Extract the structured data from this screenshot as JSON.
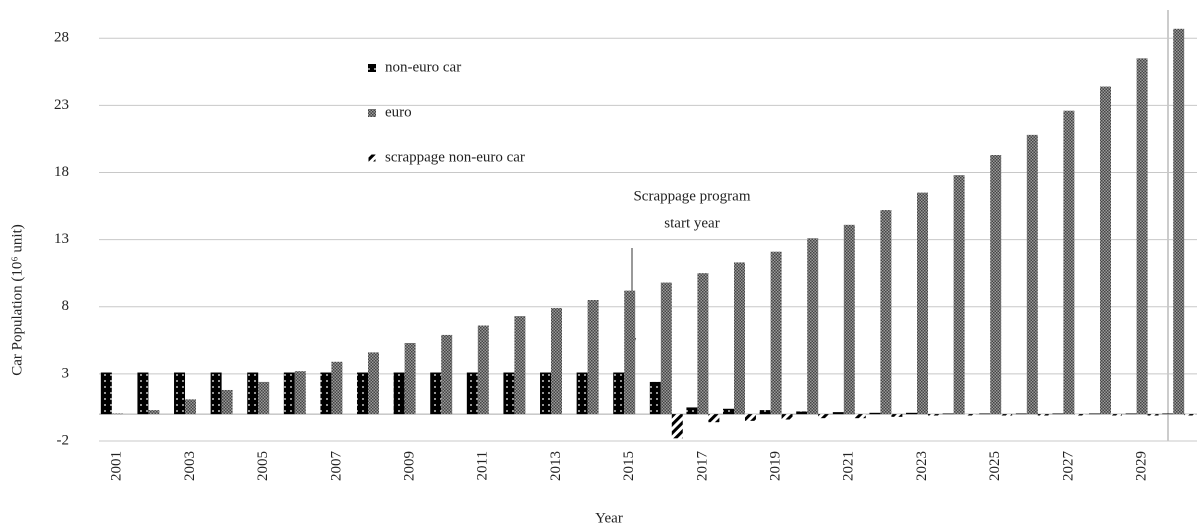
{
  "chart_data": {
    "type": "bar",
    "y_label": "Car Population (10⁶ unit)",
    "x_label": "Year",
    "annotation": [
      "Scrappage program",
      "start year"
    ],
    "categories": [
      "2001",
      null,
      "2003",
      null,
      "2005",
      null,
      "2007",
      null,
      "2009",
      null,
      "2011",
      null,
      "2013",
      null,
      "2015",
      null,
      "2017",
      null,
      "2019",
      null,
      "2021",
      null,
      "2023",
      null,
      "2025",
      null,
      "2027",
      null,
      "2029",
      null
    ],
    "series": [
      {
        "name": "non-euro car",
        "color": "#000000",
        "values": [
          3.1,
          3.1,
          3.1,
          3.1,
          3.1,
          3.1,
          3.1,
          3.1,
          3.1,
          3.1,
          3.1,
          3.1,
          3.1,
          3.1,
          3.1,
          2.4,
          0.5,
          0.4,
          0.3,
          0.2,
          0.15,
          0.1,
          0.1,
          0.05,
          0.05,
          0.05,
          0.05,
          0.05,
          0.05,
          0.05
        ]
      },
      {
        "name": "euro",
        "color": "#7a7a7a",
        "values": [
          0.05,
          0.3,
          1.1,
          1.8,
          2.4,
          3.2,
          3.9,
          4.6,
          5.3,
          5.9,
          6.6,
          7.3,
          7.9,
          8.5,
          9.2,
          9.8,
          10.5,
          11.3,
          12.1,
          13.1,
          14.1,
          15.2,
          16.5,
          17.8,
          19.3,
          20.8,
          22.6,
          24.4,
          26.5,
          28.7
        ]
      },
      {
        "name": "scrappage non-euro car",
        "color": "#ffffff",
        "values": [
          0,
          0,
          0,
          0,
          0,
          0,
          0,
          0,
          0,
          0,
          0,
          0,
          0,
          0,
          0,
          -1.8,
          -0.6,
          -0.5,
          -0.4,
          -0.3,
          -0.3,
          -0.2,
          -0.1,
          -0.1,
          -0.1,
          -0.1,
          -0.1,
          -0.1,
          -0.1,
          -0.1
        ]
      }
    ],
    "ylim": [
      -2,
      30.1
    ],
    "yticks": [
      -2,
      3,
      8,
      13,
      18,
      23,
      28
    ],
    "grid": true
  }
}
